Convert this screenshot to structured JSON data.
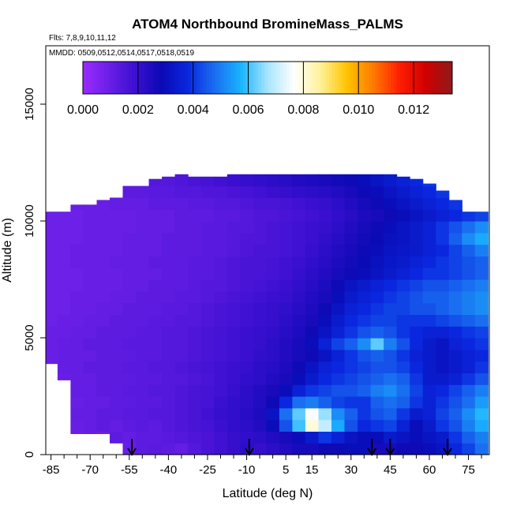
{
  "chart_data": {
    "type": "heatmap",
    "title": "ATOM4 Northbound BromineMass_PALMS",
    "flights_note": "Flts: 7,8,9,10,11,12",
    "dates_note": "MMDD: 0509,0512,0514,0517,0518,0519",
    "xlabel": "Latitude (deg N)",
    "ylabel": "Altitude (m)",
    "xlim": [
      -87,
      83
    ],
    "ylim": [
      0,
      17500
    ],
    "x_ticks": [
      -85,
      -70,
      -55,
      -40,
      -25,
      -10,
      5,
      15,
      30,
      45,
      60,
      75
    ],
    "x_minor_ticks": [
      -80,
      -75,
      -65,
      -60,
      -50,
      -45,
      -35,
      -30,
      -20,
      -15,
      -5,
      0,
      10,
      20,
      25,
      35,
      40,
      50,
      55,
      65,
      70,
      80
    ],
    "y_ticks": [
      0,
      5000,
      10000,
      15000
    ],
    "colorbar": {
      "min": 0.0,
      "max": 0.0134,
      "ticks": [
        "0.000",
        "0.002",
        "0.004",
        "0.006",
        "0.008",
        "0.010",
        "0.012"
      ],
      "tick_values": [
        0,
        0.002,
        0.004,
        0.006,
        0.008,
        0.01,
        0.012
      ],
      "colors": [
        "#9b2bff",
        "#6a1fe6",
        "#3a0fd0",
        "#0a0ab4",
        "#0a28e0",
        "#1a6ef0",
        "#19b4ff",
        "#a8e4ff",
        "#ffffff",
        "#fff19a",
        "#ffc400",
        "#ff7a00",
        "#ff1e00",
        "#d00000",
        "#8e1a1a"
      ]
    },
    "profile_markers_lat": [
      -54,
      -9,
      38,
      45,
      67
    ],
    "coverage_lat": [
      -85,
      -80,
      -75,
      -70,
      -65,
      -60,
      -55,
      -50,
      -45,
      -40,
      -35,
      -30,
      -25,
      -20,
      -15,
      -10,
      -5,
      0,
      5,
      10,
      15,
      20,
      25,
      30,
      35,
      40,
      45,
      50,
      55,
      60,
      65,
      70,
      75,
      80
    ],
    "coverage_top_m": [
      10400,
      10400,
      10700,
      10700,
      10900,
      11000,
      11500,
      11500,
      11800,
      11900,
      12000,
      11900,
      11900,
      11900,
      12200,
      12400,
      12400,
      12400,
      12400,
      12400,
      12400,
      12400,
      12300,
      12300,
      12400,
      12400,
      12100,
      11900,
      11800,
      11600,
      11300,
      10900,
      10400,
      10400
    ],
    "coverage_bottom_m": [
      3900,
      3200,
      900,
      900,
      900,
      500,
      0,
      0,
      0,
      0,
      0,
      0,
      0,
      0,
      0,
      0,
      0,
      0,
      0,
      0,
      0,
      0,
      0,
      0,
      0,
      0,
      0,
      0,
      0,
      0,
      0,
      0,
      0,
      0
    ],
    "altitude_levels_m": [
      250,
      750,
      1250,
      1750,
      2250,
      2750,
      3250,
      3750,
      4250,
      4750,
      5250,
      5750,
      6250,
      6750,
      7250,
      7750,
      8250,
      8750,
      9250,
      9750,
      10250,
      10750,
      11250,
      11750
    ],
    "bromine_mass_grid": [
      [
        0.0008,
        0.001,
        0.0011,
        0.001,
        0.0012,
        0.0011,
        0.001,
        0.0012,
        0.0013,
        0.0012,
        0.0011,
        0.0014,
        0.0016,
        0.0018,
        0.002,
        0.0022,
        0.002,
        0.0022,
        0.0024,
        0.0026,
        0.0026,
        0.0028,
        0.0028,
        0.003,
        0.003,
        0.0026,
        0.0026,
        0.0028,
        0.0028,
        0.003,
        0.0032,
        0.0038,
        0.0042,
        0.0048
      ],
      [
        0.0008,
        0.0009,
        0.001,
        0.0011,
        0.001,
        0.0012,
        0.0011,
        0.0012,
        0.0012,
        0.0013,
        0.0014,
        0.0015,
        0.0016,
        0.0018,
        0.002,
        0.0021,
        0.0022,
        0.0024,
        0.0026,
        0.003,
        0.0034,
        0.004,
        0.0036,
        0.0032,
        0.003,
        0.003,
        0.0034,
        0.0032,
        0.003,
        0.0032,
        0.0034,
        0.004,
        0.0046,
        0.005
      ],
      [
        0.0009,
        0.001,
        0.001,
        0.0011,
        0.0012,
        0.0011,
        0.0012,
        0.0013,
        0.0012,
        0.0014,
        0.0015,
        0.0016,
        0.0017,
        0.0019,
        0.0021,
        0.0022,
        0.0024,
        0.003,
        0.0044,
        0.006,
        0.008,
        0.007,
        0.0056,
        0.0044,
        0.0038,
        0.004,
        0.0042,
        0.0036,
        0.003,
        0.0034,
        0.004,
        0.0044,
        0.005,
        0.0056
      ],
      [
        0.0009,
        0.001,
        0.0011,
        0.0011,
        0.0012,
        0.0012,
        0.0013,
        0.0013,
        0.0014,
        0.0014,
        0.0015,
        0.0016,
        0.0018,
        0.002,
        0.0021,
        0.0023,
        0.0025,
        0.0032,
        0.0048,
        0.0062,
        0.0076,
        0.0066,
        0.0052,
        0.0046,
        0.004,
        0.0044,
        0.0046,
        0.004,
        0.0034,
        0.0036,
        0.0042,
        0.0046,
        0.0052,
        0.0058
      ],
      [
        0.0009,
        0.001,
        0.001,
        0.0011,
        0.0011,
        0.0012,
        0.0012,
        0.0013,
        0.0013,
        0.0014,
        0.0015,
        0.0016,
        0.0017,
        0.0019,
        0.0021,
        0.0022,
        0.0024,
        0.0028,
        0.0038,
        0.0048,
        0.005,
        0.0046,
        0.0042,
        0.004,
        0.004,
        0.0046,
        0.0048,
        0.0046,
        0.004,
        0.0036,
        0.004,
        0.0044,
        0.0048,
        0.0054
      ],
      [
        0.001,
        0.001,
        0.0011,
        0.0011,
        0.0012,
        0.0012,
        0.0013,
        0.0013,
        0.0014,
        0.0014,
        0.0015,
        0.0016,
        0.0017,
        0.0018,
        0.002,
        0.0022,
        0.0024,
        0.0026,
        0.003,
        0.0036,
        0.004,
        0.0042,
        0.0044,
        0.0044,
        0.0046,
        0.005,
        0.0052,
        0.0048,
        0.0042,
        0.0036,
        0.0038,
        0.0042,
        0.0046,
        0.005
      ],
      [
        0.001,
        0.001,
        0.0011,
        0.0011,
        0.0012,
        0.0012,
        0.0012,
        0.0013,
        0.0013,
        0.0014,
        0.0014,
        0.0015,
        0.0016,
        0.0018,
        0.0019,
        0.0021,
        0.0022,
        0.0024,
        0.0026,
        0.003,
        0.0034,
        0.0038,
        0.004,
        0.0042,
        0.0044,
        0.0046,
        0.0048,
        0.0046,
        0.004,
        0.0034,
        0.0034,
        0.0036,
        0.004,
        0.0044
      ],
      [
        0.001,
        0.0011,
        0.0011,
        0.0012,
        0.0012,
        0.0012,
        0.0013,
        0.0013,
        0.0014,
        0.0014,
        0.0015,
        0.0016,
        0.0017,
        0.0018,
        0.0019,
        0.002,
        0.0022,
        0.0023,
        0.0025,
        0.0028,
        0.0032,
        0.0036,
        0.0038,
        0.004,
        0.0042,
        0.0044,
        0.0044,
        0.0042,
        0.0038,
        0.0034,
        0.0032,
        0.0034,
        0.0036,
        0.004
      ],
      [
        0.001,
        0.0011,
        0.0011,
        0.0011,
        0.0012,
        0.0012,
        0.0012,
        0.0013,
        0.0013,
        0.0014,
        0.0014,
        0.0015,
        0.0016,
        0.0017,
        0.0018,
        0.0019,
        0.0021,
        0.0022,
        0.0024,
        0.0026,
        0.0028,
        0.0032,
        0.0036,
        0.004,
        0.0044,
        0.0046,
        0.0044,
        0.004,
        0.0036,
        0.0034,
        0.0032,
        0.0034,
        0.0036,
        0.0038
      ],
      [
        0.001,
        0.0011,
        0.0011,
        0.0012,
        0.0012,
        0.0012,
        0.0013,
        0.0013,
        0.0013,
        0.0014,
        0.0014,
        0.0015,
        0.0016,
        0.0017,
        0.0018,
        0.0019,
        0.002,
        0.0022,
        0.0024,
        0.0026,
        0.003,
        0.0036,
        0.0042,
        0.0046,
        0.0052,
        0.0062,
        0.005,
        0.0044,
        0.0038,
        0.0034,
        0.0032,
        0.0036,
        0.0038,
        0.004
      ],
      [
        0.001,
        0.001,
        0.0011,
        0.0011,
        0.0012,
        0.0012,
        0.0012,
        0.0013,
        0.0013,
        0.0014,
        0.0014,
        0.0015,
        0.0016,
        0.0017,
        0.0018,
        0.0019,
        0.002,
        0.0021,
        0.0023,
        0.0025,
        0.0028,
        0.0032,
        0.0036,
        0.004,
        0.0044,
        0.0046,
        0.0044,
        0.004,
        0.0038,
        0.0036,
        0.0036,
        0.0038,
        0.004,
        0.0042
      ],
      [
        0.0009,
        0.001,
        0.001,
        0.0011,
        0.0011,
        0.0012,
        0.0012,
        0.0012,
        0.0013,
        0.0013,
        0.0014,
        0.0014,
        0.0015,
        0.0016,
        0.0017,
        0.0018,
        0.0019,
        0.002,
        0.0022,
        0.0024,
        0.0026,
        0.003,
        0.0034,
        0.0038,
        0.004,
        0.0042,
        0.0042,
        0.004,
        0.004,
        0.004,
        0.0042,
        0.0044,
        0.0046,
        0.0048
      ],
      [
        0.0009,
        0.0009,
        0.001,
        0.001,
        0.0011,
        0.0011,
        0.0012,
        0.0012,
        0.0012,
        0.0013,
        0.0013,
        0.0014,
        0.0015,
        0.0016,
        0.0017,
        0.0018,
        0.0019,
        0.002,
        0.0021,
        0.0023,
        0.0025,
        0.0028,
        0.0032,
        0.0036,
        0.0038,
        0.004,
        0.0042,
        0.0042,
        0.0044,
        0.0044,
        0.0046,
        0.0048,
        0.005,
        0.0052
      ],
      [
        0.0009,
        0.0009,
        0.001,
        0.001,
        0.001,
        0.0011,
        0.0011,
        0.0012,
        0.0012,
        0.0012,
        0.0013,
        0.0013,
        0.0014,
        0.0015,
        0.0016,
        0.0017,
        0.0018,
        0.0019,
        0.002,
        0.0022,
        0.0024,
        0.0026,
        0.003,
        0.0034,
        0.0036,
        0.0038,
        0.004,
        0.0042,
        0.0044,
        0.0046,
        0.0046,
        0.0048,
        0.005,
        0.0052
      ],
      [
        0.0009,
        0.0009,
        0.0009,
        0.001,
        0.001,
        0.001,
        0.0011,
        0.0011,
        0.0012,
        0.0012,
        0.0012,
        0.0013,
        0.0014,
        0.0014,
        0.0015,
        0.0016,
        0.0017,
        0.0018,
        0.0019,
        0.0021,
        0.0023,
        0.0025,
        0.0028,
        0.0032,
        0.0034,
        0.0036,
        0.0038,
        0.004,
        0.0042,
        0.0044,
        0.0044,
        0.0046,
        0.0048,
        0.005
      ],
      [
        0.0009,
        0.0009,
        0.0009,
        0.001,
        0.001,
        0.001,
        0.0011,
        0.0011,
        0.0011,
        0.0012,
        0.0012,
        0.0013,
        0.0013,
        0.0014,
        0.0015,
        0.0016,
        0.0016,
        0.0017,
        0.0018,
        0.002,
        0.0022,
        0.0024,
        0.0026,
        0.0028,
        0.003,
        0.0032,
        0.0034,
        0.0036,
        0.0038,
        0.004,
        0.004,
        0.0042,
        0.0044,
        0.0046
      ],
      [
        0.0009,
        0.0009,
        0.001,
        0.001,
        0.001,
        0.0011,
        0.0011,
        0.0011,
        0.0012,
        0.0012,
        0.0012,
        0.0013,
        0.0013,
        0.0014,
        0.0015,
        0.0016,
        0.0016,
        0.0017,
        0.0018,
        0.0019,
        0.0021,
        0.0023,
        0.0025,
        0.0027,
        0.0029,
        0.0031,
        0.0033,
        0.0034,
        0.0036,
        0.0038,
        0.004,
        0.0042,
        0.0044,
        0.0046
      ],
      [
        0.0009,
        0.0009,
        0.001,
        0.001,
        0.001,
        0.001,
        0.0011,
        0.0011,
        0.0011,
        0.0012,
        0.0012,
        0.0012,
        0.0013,
        0.0013,
        0.0014,
        0.0015,
        0.0016,
        0.0016,
        0.0017,
        0.0018,
        0.002,
        0.0022,
        0.0024,
        0.0026,
        0.0028,
        0.003,
        0.0032,
        0.0033,
        0.0034,
        0.0036,
        0.0038,
        0.0042,
        0.0046,
        0.005
      ],
      [
        0.0009,
        0.0009,
        0.0009,
        0.001,
        0.001,
        0.001,
        0.0011,
        0.0011,
        0.0011,
        0.0012,
        0.0012,
        0.0012,
        0.0013,
        0.0013,
        0.0014,
        0.0015,
        0.0015,
        0.0016,
        0.0017,
        0.0018,
        0.0019,
        0.0021,
        0.0023,
        0.0025,
        0.0027,
        0.0029,
        0.0031,
        0.0032,
        0.0034,
        0.0036,
        0.004,
        0.0046,
        0.0052,
        0.0056
      ],
      [
        0.0009,
        0.0009,
        0.0009,
        0.001,
        0.001,
        0.001,
        0.001,
        0.0011,
        0.0011,
        0.0011,
        0.0012,
        0.0012,
        0.0013,
        0.0013,
        0.0014,
        0.0014,
        0.0015,
        0.0016,
        0.0017,
        0.0018,
        0.0019,
        0.002,
        0.0022,
        0.0024,
        0.0026,
        0.0028,
        0.003,
        0.0032,
        0.0034,
        0.0036,
        0.004,
        0.0044,
        0.0048,
        0.0052
      ],
      [
        0.0009,
        0.0009,
        0.0009,
        0.001,
        0.001,
        0.001,
        0.001,
        0.0011,
        0.0011,
        0.0011,
        0.0012,
        0.0012,
        0.0012,
        0.0013,
        0.0013,
        0.0014,
        0.0015,
        0.0015,
        0.0016,
        0.0017,
        0.0018,
        0.0019,
        0.0021,
        0.0023,
        0.0025,
        0.0026,
        0.0028,
        0.003,
        0.0032,
        0.0034,
        0.0036,
        0.0038,
        0.004,
        0.0042
      ],
      [
        0.0009,
        0.0009,
        0.001,
        0.001,
        0.001,
        0.0011,
        0.0011,
        0.0011,
        0.0012,
        0.0012,
        0.0012,
        0.0013,
        0.0013,
        0.0014,
        0.0014,
        0.0015,
        0.0016,
        0.0016,
        0.0017,
        0.0018,
        0.0019,
        0.002,
        0.0022,
        0.0024,
        0.0026,
        0.0028,
        0.003,
        0.0032,
        0.0034,
        0.0036,
        0.0038,
        0.004,
        0.0042,
        0.0044
      ],
      [
        0.001,
        0.001,
        0.001,
        0.0011,
        0.0011,
        0.0011,
        0.0012,
        0.0012,
        0.0013,
        0.0013,
        0.0014,
        0.0014,
        0.0015,
        0.0015,
        0.0016,
        0.0017,
        0.0018,
        0.0019,
        0.002,
        0.0021,
        0.0022,
        0.0023,
        0.0024,
        0.0026,
        0.0028,
        0.003,
        0.0032,
        0.0034,
        0.0036,
        0.0038,
        0.004,
        0.0042,
        0.0044,
        0.0046
      ],
      [
        0.001,
        0.001,
        0.0011,
        0.0011,
        0.0012,
        0.0012,
        0.0013,
        0.0013,
        0.0014,
        0.0014,
        0.0015,
        0.0016,
        0.0017,
        0.0018,
        0.0019,
        0.002,
        0.0021,
        0.0022,
        0.0023,
        0.0024,
        0.0025,
        0.0026,
        0.0027,
        0.0028,
        0.003,
        0.0032,
        0.0034,
        0.0036,
        0.0038,
        0.004,
        0.0042,
        0.0044,
        0.0046,
        0.0048
      ]
    ]
  }
}
